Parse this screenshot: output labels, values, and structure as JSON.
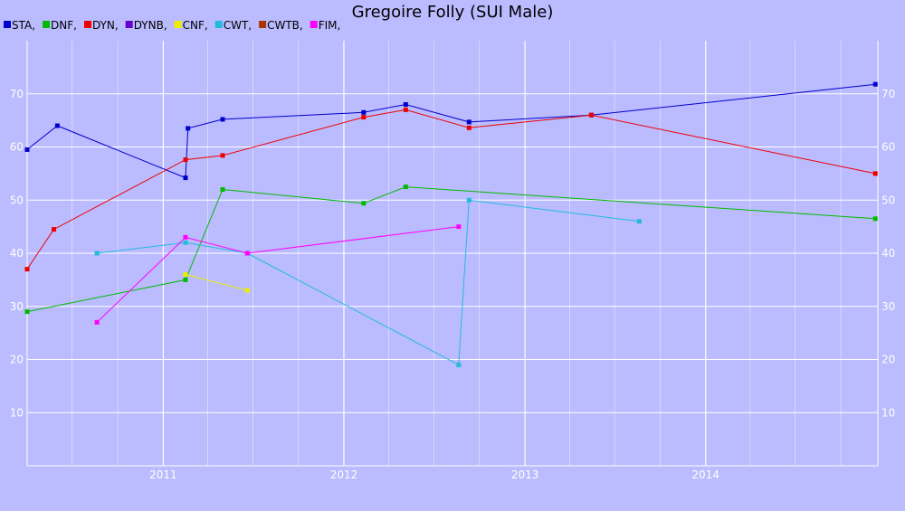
{
  "chart_data": {
    "type": "line",
    "title": "Gregoire Folly (SUI Male)",
    "xlabel": "",
    "ylabel": "",
    "xlim": [
      "2010-04-01",
      "2014-12-15"
    ],
    "ylim": [
      0,
      80
    ],
    "xticks": [
      "2011",
      "2012",
      "2013",
      "2014"
    ],
    "yticks": [
      10,
      20,
      30,
      40,
      50,
      60,
      70
    ],
    "grid": true,
    "legend_position": "top-left",
    "background": "#bbbbff",
    "series": [
      {
        "name": "STA",
        "color": "#0000cc",
        "points": [
          [
            "2010-04-01",
            59.5
          ],
          [
            "2010-06-01",
            64
          ],
          [
            "2011-02-15",
            54.2
          ],
          [
            "2011-02-20",
            63.5
          ],
          [
            "2011-05-01",
            65.2
          ],
          [
            "2012-02-10",
            66.5
          ],
          [
            "2012-05-05",
            68
          ],
          [
            "2012-09-10",
            64.7
          ],
          [
            "2013-05-15",
            66
          ],
          [
            "2014-12-10",
            71.8
          ]
        ]
      },
      {
        "name": "DNF",
        "color": "#00bb00",
        "points": [
          [
            "2010-04-01",
            29
          ],
          [
            "2011-02-15",
            35
          ],
          [
            "2011-05-01",
            52
          ],
          [
            "2012-02-10",
            49.4
          ],
          [
            "2012-05-05",
            52.5
          ],
          [
            "2014-12-10",
            46.5
          ]
        ]
      },
      {
        "name": "DYN",
        "color": "#ee0000",
        "points": [
          [
            "2010-04-01",
            37
          ],
          [
            "2010-05-25",
            44.5
          ],
          [
            "2011-02-15",
            57.6
          ],
          [
            "2011-05-01",
            58.4
          ],
          [
            "2012-02-10",
            65.6
          ],
          [
            "2012-05-05",
            67
          ],
          [
            "2012-09-10",
            63.6
          ],
          [
            "2013-05-15",
            66
          ],
          [
            "2014-12-10",
            55
          ]
        ]
      },
      {
        "name": "DYNB",
        "color": "#6600cc",
        "points": []
      },
      {
        "name": "CNF",
        "color": "#eeee00",
        "points": [
          [
            "2011-02-15",
            36
          ],
          [
            "2011-06-20",
            33
          ]
        ]
      },
      {
        "name": "CWT",
        "color": "#22bbdd",
        "points": [
          [
            "2010-08-20",
            40
          ],
          [
            "2011-02-15",
            42
          ],
          [
            "2011-06-20",
            40
          ],
          [
            "2012-08-20",
            19
          ],
          [
            "2012-09-10",
            50
          ],
          [
            "2013-08-20",
            46
          ]
        ]
      },
      {
        "name": "CWTB",
        "color": "#aa3300",
        "points": []
      },
      {
        "name": "FIM",
        "color": "#ff00ff",
        "points": [
          [
            "2010-08-20",
            27
          ],
          [
            "2011-02-15",
            43
          ],
          [
            "2011-06-20",
            40
          ],
          [
            "2012-08-20",
            45
          ]
        ]
      }
    ]
  }
}
